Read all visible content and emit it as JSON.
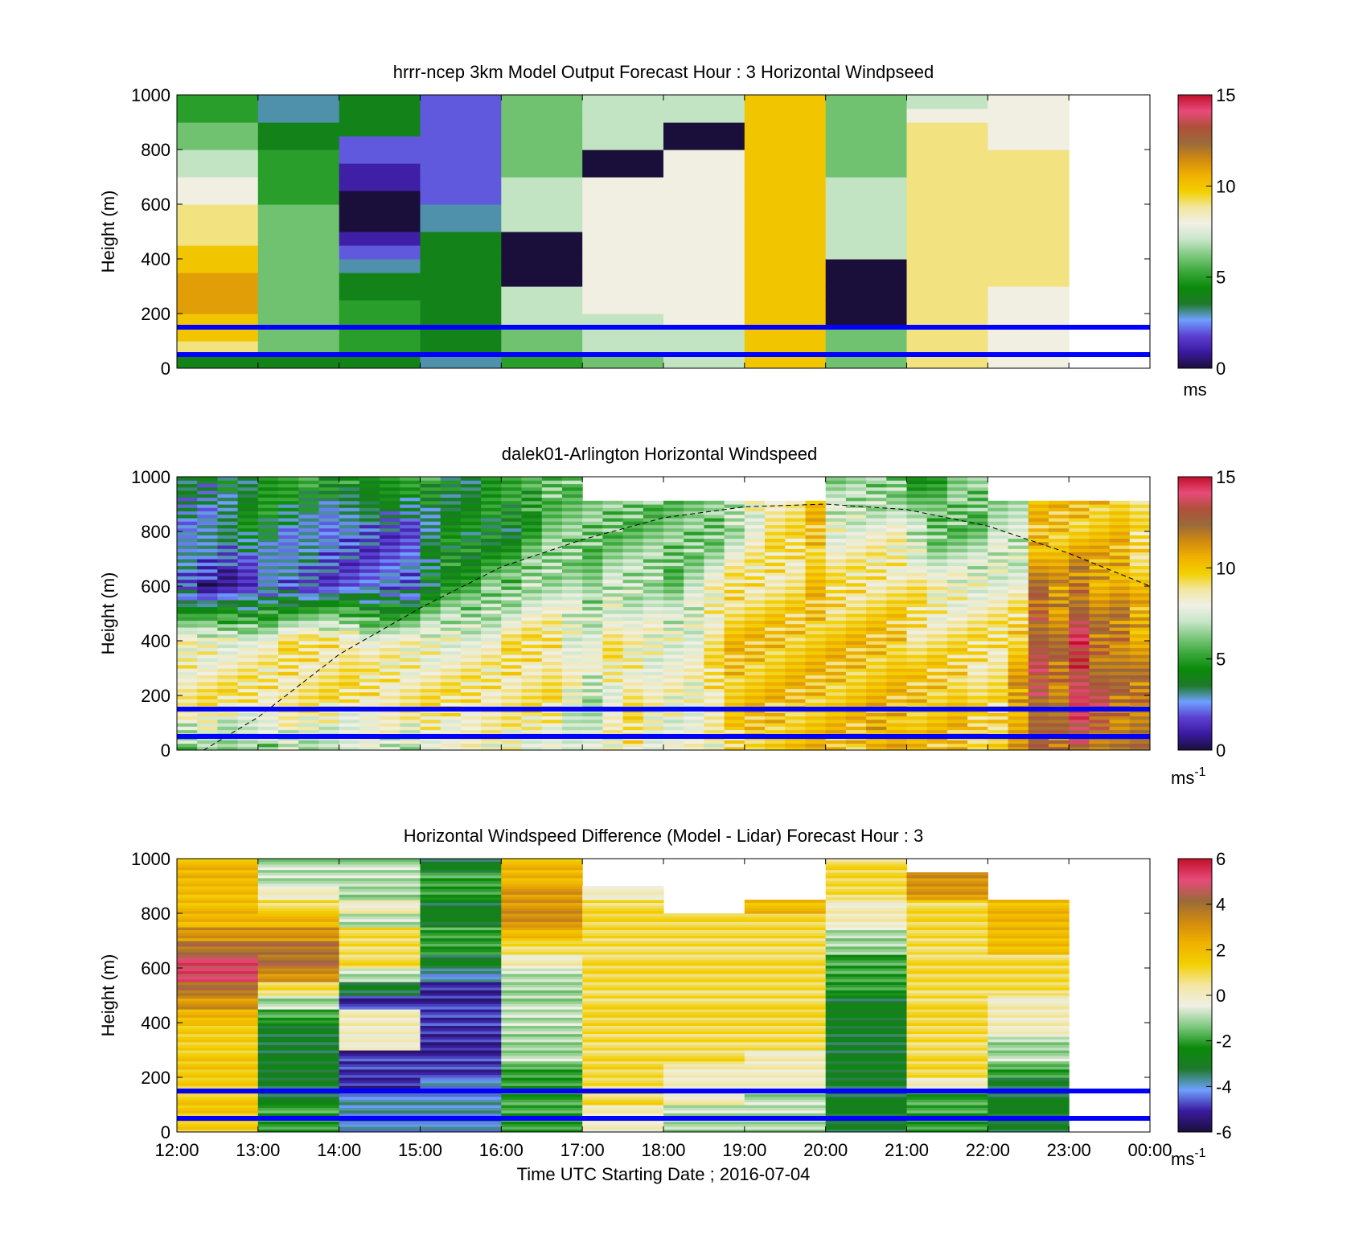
{
  "figure": {
    "xlabel": "Time UTC  Starting Date ; 2016-07-04",
    "x_tick_labels": [
      "12:00",
      "13:00",
      "14:00",
      "15:00",
      "16:00",
      "17:00",
      "18:00",
      "19:00",
      "20:00",
      "21:00",
      "22:00",
      "23:00",
      "00:00"
    ]
  },
  "colors": {
    "wind_scale": [
      "#1a0f3a",
      "#3a1aa0",
      "#5b3fd0",
      "#6fa0ff",
      "#1e7a2a",
      "#0a8a0a",
      "#3aa83a",
      "#7dc87d",
      "#c8e6c8",
      "#f0f0e6",
      "#f2e6a0",
      "#f2d000",
      "#f0b000",
      "#d08a10",
      "#9a6a3a",
      "#b0503a",
      "#e84a7a",
      "#c0102a"
    ],
    "diff_scale": [
      "#1a0f3a",
      "#3a1aa0",
      "#6fa0ff",
      "#1e7a2a",
      "#0a8a0a",
      "#7dc87d",
      "#f0f0e6",
      "#f2e6a0",
      "#f2d000",
      "#f0b000",
      "#d08a10",
      "#9a6a3a",
      "#e84a7a",
      "#c0102a"
    ],
    "reference_line": "#0000ff"
  },
  "chart_data": [
    {
      "type": "heatmap",
      "title": "hrrr-ncep 3km Model Output   Forecast Hour : 3 Horizontal Windpseed",
      "ylabel": "Height (m)",
      "xlabel": "",
      "ylim": [
        0,
        1000
      ],
      "y_ticks": [
        "0",
        "200",
        "400",
        "600",
        "800",
        "1000"
      ],
      "colorbar": {
        "ticks": [
          "0",
          "5",
          "10",
          "15"
        ],
        "unit": "ms",
        "range": [
          0,
          15
        ]
      },
      "x_hours": [
        12,
        13,
        14,
        15,
        16,
        17,
        18,
        19,
        20,
        21,
        22,
        23
      ],
      "height_levels_m": [
        25,
        75,
        125,
        175,
        225,
        275,
        325,
        375,
        425,
        475,
        525,
        575,
        625,
        675,
        725,
        775,
        825,
        875,
        925,
        975
      ],
      "values_ms": [
        [
          4,
          9,
          10,
          10,
          11,
          11,
          11,
          10,
          10,
          9,
          9,
          9,
          8,
          8,
          7,
          7,
          6,
          6,
          5,
          5
        ],
        [
          4,
          6,
          6,
          6,
          6,
          6,
          6,
          6,
          6,
          6,
          6,
          6,
          5,
          5,
          5,
          5,
          4,
          4,
          3,
          3
        ],
        [
          4,
          5,
          5,
          5,
          5,
          4,
          4,
          3,
          2,
          1,
          0,
          0,
          0,
          1,
          1,
          2,
          2,
          4,
          4,
          4
        ],
        [
          3,
          4,
          4,
          4,
          4,
          4,
          4,
          4,
          4,
          4,
          3,
          3,
          2,
          2,
          2,
          2,
          2,
          2,
          2,
          2
        ],
        [
          5,
          6,
          6,
          7,
          7,
          7,
          0,
          0,
          0,
          0,
          7,
          7,
          7,
          7,
          6,
          6,
          6,
          6,
          6,
          6
        ],
        [
          6,
          7,
          7,
          7,
          8,
          8,
          8,
          8,
          8,
          8,
          8,
          8,
          8,
          8,
          0,
          0,
          7,
          7,
          7,
          7
        ],
        [
          7,
          7,
          7,
          8,
          8,
          8,
          8,
          8,
          8,
          8,
          8,
          8,
          8,
          8,
          8,
          8,
          0,
          0,
          7,
          7
        ],
        [
          10,
          10,
          10,
          10,
          10,
          10,
          10,
          10,
          10,
          10,
          10,
          10,
          10,
          10,
          10,
          10,
          10,
          10,
          10,
          10
        ],
        [
          6,
          6,
          6,
          0,
          0,
          0,
          0,
          0,
          7,
          7,
          7,
          7,
          7,
          7,
          6,
          6,
          6,
          6,
          6,
          6
        ],
        [
          9,
          9,
          9,
          9,
          9,
          9,
          9,
          9,
          9,
          9,
          9,
          9,
          9,
          9,
          9,
          9,
          9,
          9,
          8,
          7
        ],
        [
          8,
          8,
          8,
          8,
          8,
          8,
          9,
          9,
          9,
          9,
          9,
          9,
          9,
          9,
          9,
          9,
          8,
          8,
          8,
          8
        ],
        [
          null,
          null,
          null,
          null,
          null,
          null,
          null,
          null,
          null,
          null,
          null,
          null,
          null,
          null,
          null,
          null,
          null,
          null,
          null,
          null
        ]
      ],
      "reference_lines_m": [
        150,
        50
      ]
    },
    {
      "type": "heatmap",
      "title": "dalek01-Arlington  Horizontal Windspeed",
      "ylabel": "Height (m)",
      "xlabel": "",
      "ylim": [
        0,
        1000
      ],
      "y_ticks": [
        "0",
        "200",
        "400",
        "600",
        "800",
        "1000"
      ],
      "colorbar": {
        "ticks": [
          "0",
          "5",
          "10",
          "15"
        ],
        "unit": "ms",
        "unit_exp": "-1",
        "range": [
          0,
          15
        ]
      },
      "x_hours": [
        12,
        12.25,
        12.5,
        12.75,
        13,
        13.25,
        13.5,
        13.75,
        14,
        14.25,
        14.5,
        14.75,
        15,
        15.25,
        15.5,
        15.75,
        16,
        16.25,
        16.5,
        16.75,
        17,
        17.25,
        17.5,
        17.75,
        18,
        18.25,
        18.5,
        18.75,
        19,
        19.25,
        19.5,
        19.75,
        20,
        20.25,
        20.5,
        20.75,
        21,
        21.25,
        21.5,
        21.75,
        22,
        22.25,
        22.5,
        22.75,
        23,
        23.25,
        23.5,
        23.75
      ],
      "profile_nodes_m": [
        0,
        200,
        400,
        600,
        800,
        1000
      ],
      "profile_nodes_ms": [
        [
          6,
          9,
          8,
          2,
          3,
          3
        ],
        [
          7,
          9,
          8,
          1,
          3,
          3
        ],
        [
          6,
          9,
          8,
          1,
          3,
          4
        ],
        [
          6,
          9,
          8,
          1,
          4,
          4
        ],
        [
          6,
          9,
          8,
          2,
          4,
          5
        ],
        [
          7,
          9,
          9,
          2,
          3,
          5
        ],
        [
          7,
          9,
          9,
          2,
          3,
          5
        ],
        [
          7,
          9,
          9,
          2,
          2,
          5
        ],
        [
          7,
          9,
          9,
          2,
          2,
          5
        ],
        [
          7,
          9,
          8,
          2,
          2,
          5
        ],
        [
          7,
          9,
          8,
          2,
          2,
          5
        ],
        [
          7,
          9,
          8,
          2,
          2,
          5
        ],
        [
          8,
          9,
          8,
          4,
          3,
          5
        ],
        [
          8,
          9,
          8,
          5,
          4,
          4
        ],
        [
          8,
          9,
          8,
          5,
          4,
          4
        ],
        [
          8,
          9,
          8,
          6,
          4,
          5
        ],
        [
          8,
          9,
          9,
          6,
          4,
          5
        ],
        [
          8,
          9,
          9,
          7,
          5,
          5
        ],
        [
          8,
          9,
          9,
          7,
          6,
          6
        ],
        [
          7,
          8,
          8,
          7,
          6,
          6
        ],
        [
          7,
          7,
          8,
          6,
          6,
          null
        ],
        [
          8,
          8,
          9,
          7,
          6,
          null
        ],
        [
          9,
          9,
          8,
          7,
          6,
          null
        ],
        [
          8,
          8,
          8,
          7,
          6,
          null
        ],
        [
          8,
          8,
          8,
          6,
          6,
          null
        ],
        [
          8,
          8,
          8,
          7,
          6,
          null
        ],
        [
          8,
          9,
          9,
          8,
          6,
          null
        ],
        [
          9,
          10,
          10,
          9,
          7,
          null
        ],
        [
          10,
          10,
          10,
          9,
          8,
          null
        ],
        [
          10,
          10,
          10,
          9,
          9,
          null
        ],
        [
          10,
          10,
          10,
          9,
          9,
          null
        ],
        [
          10,
          10,
          10,
          10,
          10,
          null
        ],
        [
          10,
          10,
          10,
          9,
          8,
          6
        ],
        [
          10,
          10,
          10,
          9,
          8,
          6
        ],
        [
          11,
          10,
          10,
          9,
          8,
          6
        ],
        [
          11,
          10,
          10,
          9,
          8,
          6
        ],
        [
          10,
          10,
          9,
          9,
          7,
          5
        ],
        [
          10,
          10,
          9,
          8,
          6,
          5
        ],
        [
          10,
          10,
          9,
          8,
          6,
          6
        ],
        [
          10,
          9,
          9,
          8,
          6,
          6
        ],
        [
          10,
          9,
          9,
          8,
          7,
          null
        ],
        [
          11,
          11,
          10,
          8,
          7,
          null
        ],
        [
          12,
          13,
          13,
          12,
          10,
          null
        ],
        [
          12,
          12,
          12,
          11,
          10,
          null
        ],
        [
          13,
          14,
          14,
          12,
          10,
          null
        ],
        [
          12,
          13,
          12,
          11,
          10,
          null
        ],
        [
          12,
          12,
          12,
          11,
          10,
          null
        ],
        [
          12,
          12,
          11,
          10,
          9,
          null
        ]
      ],
      "boundary_layer_curve": {
        "hours": [
          12.33,
          13,
          14,
          15,
          16,
          17,
          18,
          19,
          20,
          21,
          22,
          23,
          24
        ],
        "height_m": [
          0,
          120,
          350,
          520,
          670,
          770,
          850,
          890,
          900,
          880,
          820,
          720,
          600
        ]
      },
      "reference_lines_m": [
        150,
        50
      ]
    },
    {
      "type": "heatmap",
      "title": "Horizontal Windspeed Difference (Model - Lidar) Forecast Hour : 3",
      "ylabel": "Height (m)",
      "xlabel": "Time UTC  Starting Date ; 2016-07-04",
      "ylim": [
        0,
        1000
      ],
      "y_ticks": [
        "0",
        "200",
        "400",
        "600",
        "800",
        "1000"
      ],
      "colorbar": {
        "ticks": [
          "-6",
          "-4",
          "-2",
          "0",
          "2",
          "4",
          "6"
        ],
        "unit": "ms",
        "unit_exp": "-1",
        "range": [
          -6,
          6
        ]
      },
      "x_hours": [
        12,
        13,
        14,
        15,
        16,
        17,
        18,
        19,
        20,
        21,
        22,
        23
      ],
      "height_levels_m": [
        25,
        75,
        125,
        175,
        225,
        275,
        325,
        375,
        425,
        475,
        525,
        575,
        625,
        675,
        725,
        775,
        825,
        875,
        925,
        975
      ],
      "values_ms": [
        [
          1.5,
          1.5,
          1.5,
          1.5,
          1.5,
          1.5,
          1.5,
          1.5,
          2,
          3,
          4,
          5,
          5,
          4,
          3,
          2,
          2,
          2,
          2,
          2
        ],
        [
          -2,
          -2,
          -3,
          -3,
          -3,
          -3,
          -3,
          -3,
          -2,
          -1,
          1,
          3,
          4,
          4,
          3,
          2,
          1,
          0,
          -1,
          -1
        ],
        [
          -4,
          -4,
          -4,
          -5,
          -5,
          -5,
          0,
          0,
          0,
          -5,
          -3,
          -1,
          1,
          1,
          1,
          -1,
          0,
          -1,
          -1,
          -1
        ],
        [
          -4,
          -4,
          -4,
          -4,
          -5,
          -5,
          -5,
          -5,
          -5,
          -5,
          -5,
          -4,
          -3,
          -2,
          -2,
          -3,
          -3,
          -2,
          -2,
          -3
        ],
        [
          -2,
          -2,
          -2,
          -2,
          -2,
          -1,
          -1,
          -1,
          -1,
          -1,
          -1,
          -1,
          0,
          1,
          2,
          3,
          3,
          3,
          2,
          2
        ],
        [
          0,
          0,
          1,
          1,
          1,
          1,
          1,
          1,
          1,
          1,
          1,
          1,
          1,
          1,
          1,
          1,
          1,
          0,
          null,
          null
        ],
        [
          -1,
          -1,
          0,
          0,
          0,
          1,
          1,
          1,
          1,
          1,
          1,
          1,
          1,
          1,
          1,
          1,
          null,
          null,
          null,
          null
        ],
        [
          -1,
          -1,
          -1,
          0,
          0,
          0,
          1,
          1,
          1,
          1,
          1,
          1,
          1,
          1,
          1,
          1,
          2,
          null,
          null,
          null
        ],
        [
          -3,
          -3,
          -3,
          -3,
          -3,
          -3,
          -3,
          -3,
          -3,
          -3,
          -2,
          -2,
          -2,
          -1,
          -1,
          0,
          0,
          1,
          1,
          1
        ],
        [
          -2,
          -2,
          -2,
          0,
          1,
          1,
          1,
          1,
          1,
          1,
          1,
          1,
          1,
          1,
          1,
          1,
          1,
          3,
          3,
          null
        ],
        [
          -3,
          -3,
          -3,
          -3,
          -2,
          -1,
          -1,
          0,
          0,
          0,
          1,
          1,
          1,
          2,
          2,
          2,
          2,
          null,
          null,
          null
        ],
        [
          null,
          null,
          null,
          null,
          null,
          null,
          null,
          null,
          null,
          null,
          null,
          null,
          null,
          null,
          null,
          null,
          null,
          null,
          null,
          null
        ]
      ],
      "reference_lines_m": [
        150,
        50
      ]
    }
  ]
}
